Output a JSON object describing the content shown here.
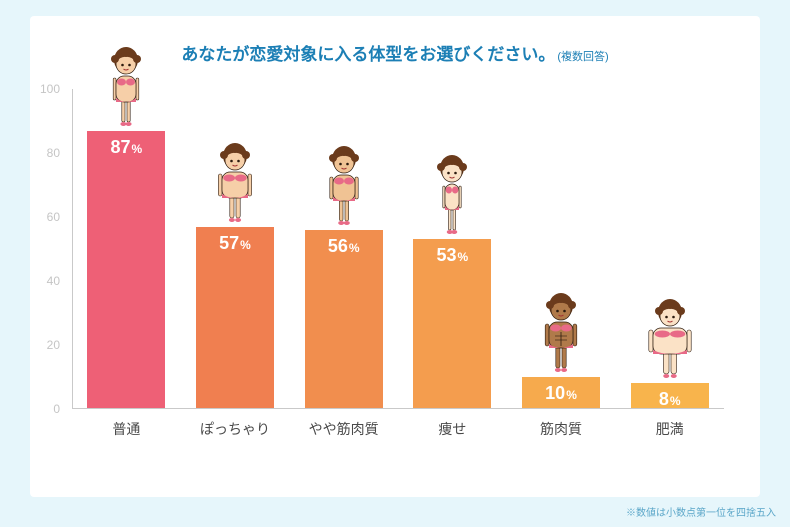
{
  "title": {
    "main": "あなたが恋愛対象に入る体型をお選びください。",
    "note": "(複数回答)",
    "color": "#1c7fb5",
    "main_fontsize": 17,
    "note_fontsize": 11
  },
  "chart": {
    "type": "bar",
    "background_color": "#ffffff",
    "outer_background_color": "#e6f6fb",
    "ymax": 100,
    "ytick_step": 20,
    "ytick_color": "#c5c5c5",
    "ytick_fontsize": 12,
    "axis_color": "#c9c9c9",
    "bar_width_pct": 72,
    "value_label_color": "#ffffff",
    "value_label_fontsize": 18,
    "percent_suffix": "%",
    "xlabel_fontsize": 14,
    "xlabel_color": "#4a4a4a",
    "categories": [
      {
        "label": "普通",
        "value": 87,
        "color": "#ee6076",
        "body": "normal",
        "skin": "#f6cfa8"
      },
      {
        "label": "ぽっちゃり",
        "value": 57,
        "color": "#f07f50",
        "body": "plump",
        "skin": "#f6cfa8"
      },
      {
        "label": "やや筋肉質",
        "value": 56,
        "color": "#f18e4e",
        "body": "semifit",
        "skin": "#f0c394"
      },
      {
        "label": "痩せ",
        "value": 53,
        "color": "#f49d4e",
        "body": "thin",
        "skin": "#fbe2c6"
      },
      {
        "label": "筋肉質",
        "value": 10,
        "color": "#f6aa4d",
        "body": "muscular",
        "skin": "#b07a4a"
      },
      {
        "label": "肥満",
        "value": 8,
        "color": "#f8b44c",
        "body": "obese",
        "skin": "#fbe2c6"
      }
    ]
  },
  "footnote": {
    "text": "※数値は小数点第一位を四捨五入",
    "color": "#5aa6c8",
    "fontsize": 10
  }
}
